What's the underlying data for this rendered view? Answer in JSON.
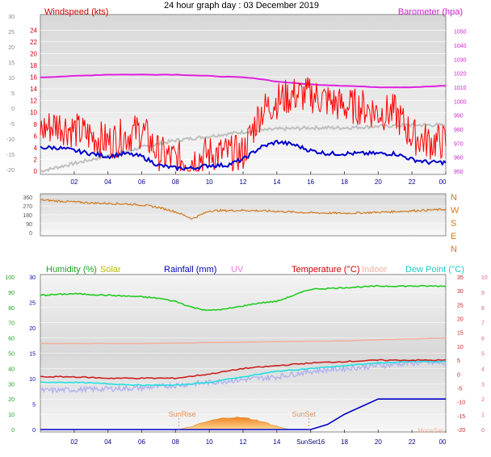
{
  "title": "24 hour graph day : 03 December 2019",
  "colors": {
    "wind": "#ff0000",
    "avgwind": "#0000cc",
    "gust_grey": "#c0c0c0",
    "baro": "#e020e0",
    "winddir": "#d07a20",
    "humidity": "#22cc22",
    "solar": "#c8c800",
    "rain": "#0000c8",
    "uv": "#e080e0",
    "temp": "#cc2020",
    "indoor": "#f0b0a0",
    "dew": "#20e0e0",
    "temp_grey": "#b0b0f0",
    "solar_fill": "#f0a030",
    "tick_label": "#000080"
  },
  "x_ticks": [
    "02",
    "04",
    "06",
    "08",
    "10",
    "12",
    "14",
    "16",
    "18",
    "20",
    "22",
    "00"
  ],
  "panel1": {
    "left_label": "Windspeed (kts)",
    "right_label": "Barometer (hpa)",
    "left_outer_ticks": [
      "30",
      "25",
      "20",
      "15",
      "10",
      "5",
      "0",
      "-5",
      "-10",
      "-15",
      "-20"
    ],
    "left_inner_ticks": [
      "24",
      "22",
      "20",
      "18",
      "16",
      "14",
      "12",
      "10",
      "8",
      "6",
      "4",
      "2",
      "0"
    ],
    "right_ticks": [
      "1050",
      "1040",
      "1030",
      "1020",
      "1010",
      "1000",
      "990",
      "980",
      "970",
      "960",
      "950"
    ]
  },
  "panel2": {
    "left_ticks": [
      "360",
      "270",
      "180",
      "90",
      "0"
    ],
    "right_ticks": [
      "N",
      "W",
      "S",
      "E",
      "N"
    ]
  },
  "panel3": {
    "labels": {
      "humidity": "Humidity (%)",
      "solar": "Solar",
      "rain": "Rainfall (mm)",
      "uv": "UV",
      "temp": "Temperature (°C)",
      "indoor": "Indoor",
      "dew": "Dew Point (°C)"
    },
    "hum_ticks": [
      "100",
      "90",
      "80",
      "70",
      "60",
      "50",
      "40",
      "30",
      "20",
      "10",
      "0"
    ],
    "temp_left_ticks": [
      "30",
      "25",
      "20",
      "15",
      "10",
      "5",
      "0"
    ],
    "temp_right_ticks": [
      "35",
      "30",
      "25",
      "20",
      "15",
      "10",
      "5",
      "0",
      "-5",
      "-10",
      "-15",
      "-20"
    ],
    "uv_ticks": [
      "10",
      "9",
      "8",
      "7",
      "6",
      "5",
      "4",
      "3",
      "2",
      "1",
      "0"
    ],
    "x_ticks_bottom": [
      "02",
      "04",
      "06",
      "08",
      "10",
      "12",
      "14",
      "SunSet16",
      "18",
      "20",
      "22",
      "00"
    ],
    "annotations": {
      "sunrise": "SunRise",
      "sunset": "SunSet",
      "moonset": "MoonSet"
    }
  },
  "chart_data": [
    {
      "type": "line",
      "title": "24 hour graph day : 03 December 2019",
      "x_unit": "hour",
      "ylabel": "Windspeed (kts)",
      "ylim": [
        0,
        25
      ],
      "y2label": "Barometer (hpa)",
      "y2lim": [
        950,
        1055
      ],
      "series": [
        {
          "name": "Windspeed (kts)",
          "x": [
            0,
            1,
            2,
            3,
            4,
            5,
            6,
            7,
            8,
            9,
            10,
            11,
            12,
            13,
            14,
            15,
            16,
            17,
            18,
            19,
            20,
            21,
            22,
            23,
            24
          ],
          "values": [
            7,
            8,
            7,
            6,
            5,
            6,
            7,
            3,
            2,
            2,
            3,
            3,
            3,
            10,
            12,
            13,
            13,
            12,
            11,
            11,
            10,
            10,
            6,
            5,
            5
          ]
        },
        {
          "name": "Average wind (kts)",
          "x": [
            0,
            1,
            2,
            3,
            4,
            5,
            6,
            7,
            8,
            9,
            10,
            11,
            12,
            13,
            14,
            15,
            16,
            17,
            18,
            19,
            20,
            21,
            22,
            23,
            24
          ],
          "values": [
            4,
            4,
            3.5,
            3,
            2.5,
            3,
            2.5,
            1,
            0.5,
            0.5,
            1,
            1,
            2,
            4,
            5,
            4.5,
            3.5,
            3,
            3,
            3,
            3,
            3,
            2,
            1.5,
            1.5
          ]
        },
        {
          "name": "Barometer (hpa)",
          "x": [
            0,
            2,
            4,
            6,
            8,
            10,
            12,
            13,
            14,
            16,
            18,
            20,
            22,
            24
          ],
          "values": [
            1017,
            1018,
            1019,
            1019,
            1019,
            1018,
            1017,
            1016,
            1014,
            1012,
            1011,
            1010,
            1010,
            1011
          ]
        }
      ]
    },
    {
      "type": "line",
      "ylabel": "Wind direction",
      "ylim": [
        0,
        360
      ],
      "series": [
        {
          "name": "Wind direction",
          "x": [
            0,
            1,
            2,
            3,
            4,
            5,
            6,
            7,
            8,
            9,
            10,
            12,
            14,
            16,
            18,
            20,
            22,
            24
          ],
          "values": [
            330,
            320,
            310,
            300,
            295,
            290,
            280,
            255,
            210,
            140,
            220,
            225,
            215,
            200,
            195,
            205,
            220,
            235
          ]
        }
      ]
    },
    {
      "type": "line",
      "ylabel": "Humidity (%)",
      "ylim": [
        0,
        100
      ],
      "y2label": "Temperature (°C)",
      "y2lim": [
        -20,
        35
      ],
      "series": [
        {
          "name": "Humidity (%)",
          "x": [
            0,
            2,
            4,
            6,
            7,
            8,
            9,
            10,
            11,
            12,
            13,
            14,
            15,
            16,
            18,
            20,
            22,
            24
          ],
          "values": [
            88,
            89,
            88,
            87,
            86,
            84,
            80,
            78,
            79,
            81,
            83,
            84,
            88,
            92,
            93,
            94,
            94,
            94
          ]
        },
        {
          "name": "Temperature (°C)",
          "x": [
            0,
            2,
            4,
            6,
            8,
            10,
            12,
            14,
            16,
            18,
            20,
            22,
            24
          ],
          "values": [
            -1,
            -1,
            -1.5,
            -1.5,
            -1.5,
            0,
            2,
            3,
            4,
            4.5,
            5,
            5,
            5
          ]
        },
        {
          "name": "Dew Point (°C)",
          "x": [
            0,
            2,
            4,
            6,
            8,
            10,
            12,
            14,
            16,
            18,
            20,
            22,
            24
          ],
          "values": [
            -3,
            -3,
            -3.5,
            -4,
            -4,
            -3,
            -1,
            1,
            2,
            3,
            4,
            4.5,
            4.5
          ]
        },
        {
          "name": "Indoor",
          "x": [
            0,
            6,
            12,
            18,
            24
          ],
          "values": [
            11,
            11,
            11.5,
            12,
            13
          ]
        },
        {
          "name": "Rainfall (mm)",
          "x": [
            0,
            15,
            16,
            17,
            18,
            19,
            20,
            24
          ],
          "values": [
            0,
            0,
            0,
            1,
            3,
            4.5,
            6,
            6
          ]
        }
      ]
    }
  ]
}
